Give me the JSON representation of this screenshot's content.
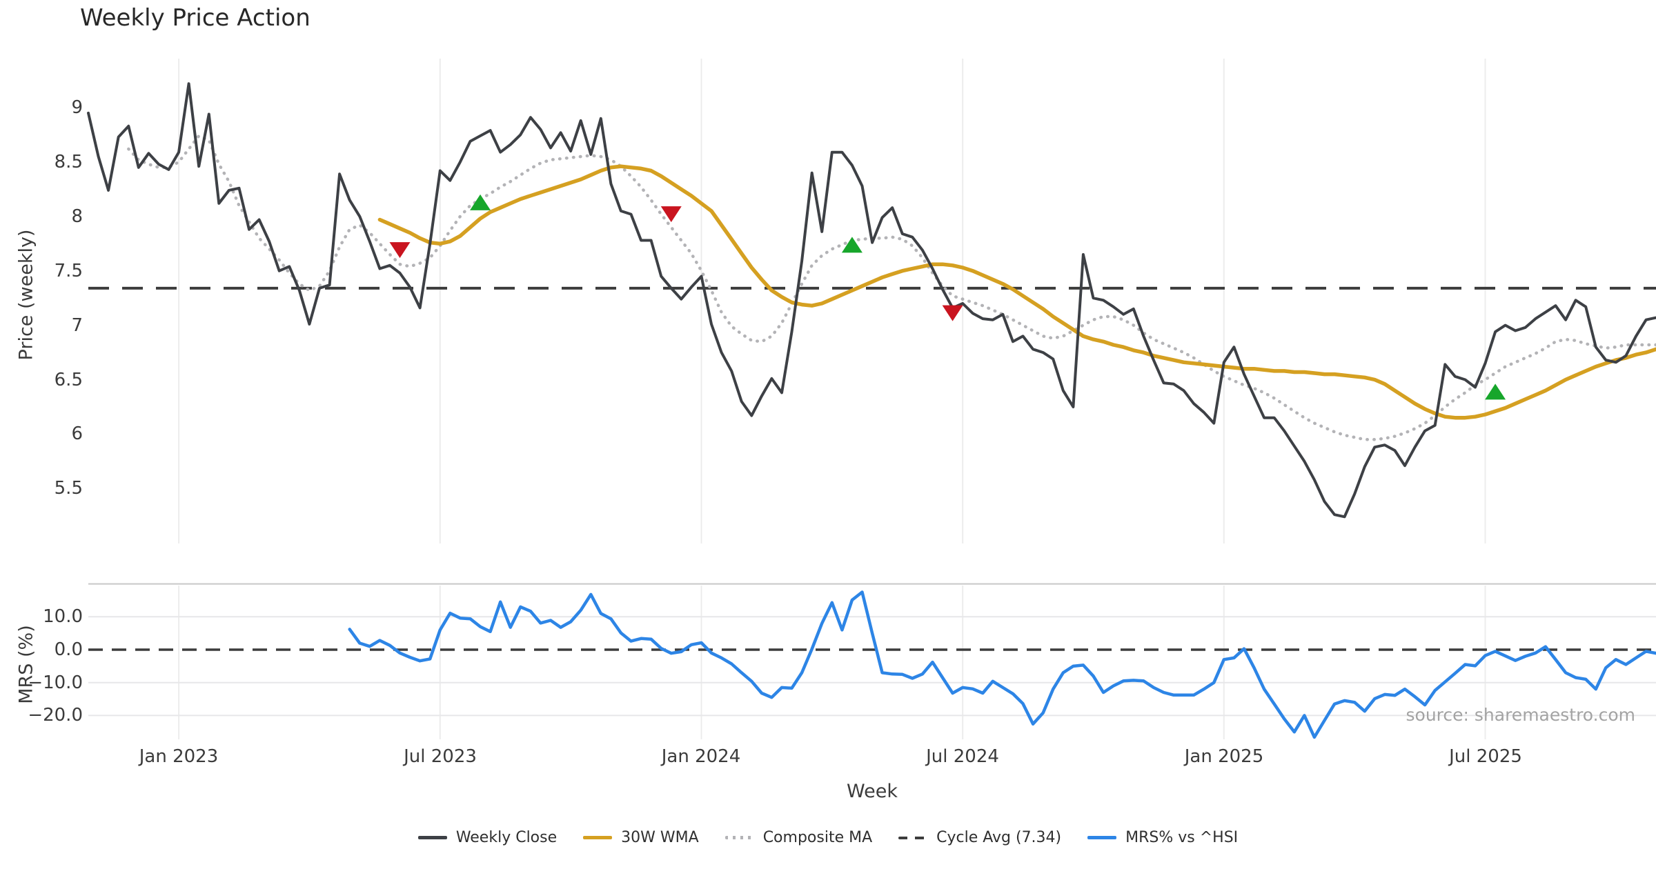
{
  "title": "Weekly Price Action",
  "source_note": "source: sharemaestro.com",
  "axes": {
    "x_title": "Week",
    "price_ylabel": "Price (weekly)",
    "mrs_ylabel": "MRS (%)"
  },
  "chart_data": {
    "type": "line",
    "title": "Weekly Price Action",
    "xlabel": "Week",
    "x_ticks": [
      {
        "label": "Jan 2023",
        "week": 9
      },
      {
        "label": "Jul 2023",
        "week": 35
      },
      {
        "label": "Jan 2024",
        "week": 61
      },
      {
        "label": "Jul 2024",
        "week": 87
      },
      {
        "label": "Jan 2025",
        "week": 113
      },
      {
        "label": "Jul 2025",
        "week": 139
      }
    ],
    "colors": {
      "weekly_close": "#3d4045",
      "wma_30w": "#d5a021",
      "composite_ma": "#b3b3b6",
      "cycle_avg": "#3c3c3c",
      "mrs": "#2d85e6",
      "buy_marker": "#17a62b",
      "sell_marker": "#c9141f",
      "gridline": "#ececec",
      "mrs_hgrid": "#e7e7e9",
      "mrs_top_spine": "#c8c8c8",
      "tick_text": "#3b3b3b",
      "source_text": "#a3a3a3"
    },
    "panels": [
      {
        "name": "price",
        "ylabel": "Price (weekly)",
        "ylim": [
          4.95,
          9.45
        ],
        "yticks": [
          {
            "label": "9",
            "value": 9
          },
          {
            "label": "8.5",
            "value": 8.5
          },
          {
            "label": "8",
            "value": 8
          },
          {
            "label": "7.5",
            "value": 7.5
          },
          {
            "label": "7",
            "value": 7
          },
          {
            "label": "6.5",
            "value": 6.5
          },
          {
            "label": "6",
            "value": 6
          },
          {
            "label": "5.5",
            "value": 5.5
          }
        ],
        "cycle_avg_value": 7.34,
        "series": [
          {
            "name": "Weekly Close",
            "start_week": 0,
            "values": [
              8.95,
              8.55,
              8.24,
              8.73,
              8.83,
              8.45,
              8.58,
              8.48,
              8.43,
              8.59,
              9.22,
              8.46,
              8.94,
              8.12,
              8.24,
              8.26,
              7.88,
              7.97,
              7.77,
              7.5,
              7.54,
              7.32,
              7.01,
              7.34,
              7.37,
              8.39,
              8.15,
              8.0,
              7.77,
              7.52,
              7.55,
              7.48,
              7.35,
              7.16,
              7.75,
              8.42,
              8.33,
              8.5,
              8.69,
              8.74,
              8.79,
              8.59,
              8.66,
              8.75,
              8.91,
              8.8,
              8.63,
              8.77,
              8.6,
              8.88,
              8.57,
              8.9,
              8.3,
              8.05,
              8.02,
              7.78,
              7.78,
              7.45,
              7.34,
              7.24,
              7.35,
              7.45,
              7.01,
              6.75,
              6.58,
              6.3,
              6.17,
              6.35,
              6.51,
              6.38,
              6.94,
              7.59,
              8.4,
              7.86,
              8.59,
              8.59,
              8.47,
              8.28,
              7.76,
              7.99,
              8.08,
              7.84,
              7.81,
              7.69,
              7.52,
              7.33,
              7.16,
              7.2,
              7.11,
              7.06,
              7.05,
              7.1,
              6.85,
              6.9,
              6.78,
              6.75,
              6.69,
              6.4,
              6.25,
              7.65,
              7.25,
              7.23,
              7.17,
              7.1,
              7.15,
              6.9,
              6.68,
              6.47,
              6.46,
              6.4,
              6.28,
              6.2,
              6.1,
              6.66,
              6.8,
              6.55,
              6.35,
              6.15,
              6.15,
              6.03,
              5.89,
              5.75,
              5.58,
              5.38,
              5.26,
              5.24,
              5.45,
              5.7,
              5.88,
              5.9,
              5.85,
              5.71,
              5.88,
              6.03,
              6.08,
              6.64,
              6.53,
              6.5,
              6.43,
              6.65,
              6.94,
              7.0,
              6.95,
              6.98,
              7.06,
              7.12,
              7.18,
              7.05,
              7.23,
              7.17,
              6.8,
              6.68,
              6.66,
              6.72,
              6.9,
              7.05,
              7.07
            ]
          },
          {
            "name": "30W WMA",
            "start_week": 29,
            "values": [
              7.97,
              7.93,
              7.89,
              7.85,
              7.8,
              7.76,
              7.75,
              7.77,
              7.82,
              7.9,
              7.98,
              8.04,
              8.08,
              8.12,
              8.16,
              8.19,
              8.22,
              8.25,
              8.28,
              8.31,
              8.34,
              8.38,
              8.42,
              8.45,
              8.46,
              8.45,
              8.44,
              8.42,
              8.37,
              8.31,
              8.25,
              8.19,
              8.12,
              8.05,
              7.92,
              7.79,
              7.66,
              7.53,
              7.42,
              7.32,
              7.26,
              7.21,
              7.19,
              7.18,
              7.2,
              7.24,
              7.28,
              7.32,
              7.36,
              7.4,
              7.44,
              7.47,
              7.5,
              7.52,
              7.54,
              7.56,
              7.56,
              7.55,
              7.53,
              7.5,
              7.46,
              7.42,
              7.38,
              7.33,
              7.27,
              7.21,
              7.15,
              7.08,
              7.02,
              6.96,
              6.9,
              6.87,
              6.85,
              6.82,
              6.8,
              6.77,
              6.75,
              6.72,
              6.7,
              6.68,
              6.66,
              6.65,
              6.64,
              6.63,
              6.62,
              6.61,
              6.6,
              6.6,
              6.59,
              6.58,
              6.58,
              6.57,
              6.57,
              6.56,
              6.55,
              6.55,
              6.54,
              6.53,
              6.52,
              6.5,
              6.46,
              6.4,
              6.34,
              6.28,
              6.23,
              6.19,
              6.16,
              6.15,
              6.15,
              6.16,
              6.18,
              6.21,
              6.24,
              6.28,
              6.32,
              6.36,
              6.4,
              6.45,
              6.5,
              6.54,
              6.58,
              6.62,
              6.65,
              6.68,
              6.7,
              6.73,
              6.75,
              6.78
            ]
          },
          {
            "name": "Composite MA",
            "start_week": 4,
            "values": [
              8.62,
              8.52,
              8.48,
              8.45,
              8.45,
              8.5,
              8.62,
              8.74,
              8.7,
              8.48,
              8.32,
              8.1,
              7.95,
              7.8,
              7.7,
              7.6,
              7.48,
              7.38,
              7.32,
              7.36,
              7.5,
              7.72,
              7.88,
              7.92,
              7.85,
              7.75,
              7.65,
              7.56,
              7.54,
              7.57,
              7.62,
              7.73,
              7.87,
              8.0,
              8.1,
              8.16,
              8.21,
              8.27,
              8.32,
              8.38,
              8.44,
              8.49,
              8.52,
              8.53,
              8.54,
              8.55,
              8.56,
              8.55,
              8.52,
              8.46,
              8.37,
              8.27,
              8.15,
              8.02,
              7.9,
              7.78,
              7.66,
              7.5,
              7.32,
              7.12,
              6.99,
              6.92,
              6.86,
              6.85,
              6.9,
              7.02,
              7.2,
              7.38,
              7.55,
              7.64,
              7.7,
              7.74,
              7.78,
              7.79,
              7.8,
              7.8,
              7.81,
              7.79,
              7.73,
              7.62,
              7.48,
              7.36,
              7.27,
              7.24,
              7.21,
              7.18,
              7.14,
              7.1,
              7.05,
              7.0,
              6.95,
              6.9,
              6.88,
              6.9,
              6.95,
              7.0,
              7.05,
              7.08,
              7.08,
              7.05,
              7.0,
              6.93,
              6.87,
              6.83,
              6.79,
              6.75,
              6.7,
              6.64,
              6.58,
              6.53,
              6.49,
              6.45,
              6.42,
              6.38,
              6.33,
              6.27,
              6.21,
              6.15,
              6.1,
              6.06,
              6.02,
              5.99,
              5.97,
              5.95,
              5.95,
              5.96,
              5.98,
              6.01,
              6.05,
              6.1,
              6.17,
              6.25,
              6.32,
              6.38,
              6.45,
              6.5,
              6.56,
              6.62,
              6.66,
              6.7,
              6.74,
              6.79,
              6.85,
              6.87,
              6.86,
              6.83,
              6.81,
              6.79,
              6.8,
              6.82,
              6.82,
              6.82,
              6.82
            ]
          }
        ],
        "markers": {
          "buy": [
            {
              "week": 39,
              "price": 8.12
            },
            {
              "week": 76,
              "price": 7.73
            },
            {
              "week": 140,
              "price": 6.38
            }
          ],
          "sell": [
            {
              "week": 31,
              "price": 7.7
            },
            {
              "week": 58,
              "price": 8.03
            },
            {
              "week": 86,
              "price": 7.12
            }
          ]
        }
      },
      {
        "name": "mrs",
        "ylabel": "MRS (%)",
        "ylim": [
          -28,
          20
        ],
        "yticks": [
          {
            "label": "10.0",
            "value": 10
          },
          {
            "label": "0.0",
            "value": 0
          },
          {
            "label": "−10.0",
            "value": -10
          },
          {
            "label": "−20.0",
            "value": -20
          }
        ],
        "zero_line_value": 0,
        "hgrid_values": [
          10,
          -10,
          -20
        ],
        "top_spine_value": 20,
        "series": [
          {
            "name": "MRS% vs ^HSI",
            "start_week": 26,
            "values": [
              6.2,
              2.0,
              1.0,
              2.8,
              1.3,
              -1.0,
              -2.3,
              -3.4,
              -2.8,
              6.0,
              11.1,
              9.6,
              9.4,
              7.0,
              5.5,
              14.5,
              6.8,
              13.0,
              11.7,
              8.1,
              8.9,
              6.8,
              8.5,
              12.0,
              16.8,
              11.0,
              9.4,
              5.1,
              2.6,
              3.4,
              3.2,
              0.4,
              -1.1,
              -0.6,
              1.5,
              2.1,
              -1.0,
              -2.5,
              -4.3,
              -7.0,
              -9.6,
              -13.2,
              -14.5,
              -11.5,
              -11.7,
              -7.0,
              0.2,
              8.0,
              14.3,
              6.0,
              15.1,
              17.5,
              5.0,
              -7.0,
              -7.4,
              -7.5,
              -8.7,
              -7.4,
              -3.8,
              -8.5,
              -13.2,
              -11.5,
              -11.9,
              -13.2,
              -9.6,
              -11.5,
              -13.4,
              -16.4,
              -22.6,
              -19.2,
              -12.0,
              -7.0,
              -5.0,
              -4.7,
              -8.0,
              -13.0,
              -11.0,
              -9.5,
              -9.3,
              -9.5,
              -11.5,
              -13.0,
              -13.8,
              -13.8,
              -13.8,
              -12.0,
              -10.0,
              -3.0,
              -2.5,
              0.3,
              -5.5,
              -12.0,
              -16.5,
              -21.0,
              -25.0,
              -20.0,
              -26.6,
              -21.5,
              -16.5,
              -15.5,
              -16.0,
              -18.7,
              -14.9,
              -13.6,
              -13.9,
              -12.0,
              -14.3,
              -16.8,
              -12.4,
              -9.8,
              -7.2,
              -4.5,
              -4.9,
              -1.8,
              -0.5,
              -1.9,
              -3.3,
              -2.0,
              -1.0,
              0.9,
              -3.0,
              -7.0,
              -8.5,
              -9.0,
              -12.0,
              -5.5,
              -3.0,
              -4.5,
              -2.5,
              -0.5,
              -1.1
            ]
          }
        ]
      }
    ],
    "legend": [
      {
        "label": "Weekly Close",
        "style": "solid",
        "color_key": "weekly_close"
      },
      {
        "label": "30W WMA",
        "style": "solid",
        "color_key": "wma_30w"
      },
      {
        "label": "Composite MA",
        "style": "dotted",
        "color_key": "composite_ma"
      },
      {
        "label": "Cycle Avg (7.34)",
        "style": "dashed",
        "color_key": "cycle_avg"
      },
      {
        "label": "MRS% vs ^HSI",
        "style": "solid",
        "color_key": "mrs"
      }
    ]
  }
}
